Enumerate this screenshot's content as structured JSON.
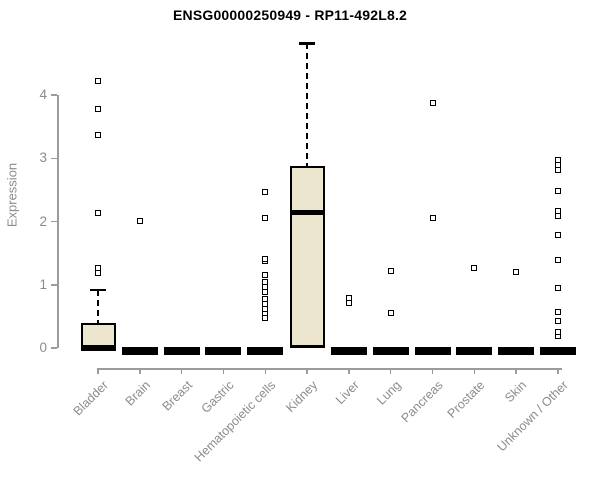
{
  "chart_data": {
    "type": "boxplot",
    "title": "ENSG00000250949 - RP11-492L8.2",
    "ylabel": "Expression",
    "xlabel": "",
    "yticks": [
      0,
      1,
      2,
      3,
      4
    ],
    "ylim": [
      -0.2,
      4.9
    ],
    "grid": false,
    "box_fill_color": "#EDE6CE",
    "box_border_color": "#000000",
    "axis_color": "#9b9b9b",
    "label_color": "#8c8c8c",
    "categories": [
      "Bladder",
      "Brain",
      "Breast",
      "Gastric",
      "Hematopoietic cells",
      "Kidney",
      "Liver",
      "Lung",
      "Pancreas",
      "Prostate",
      "Skin",
      "Unknown / Other"
    ],
    "series": [
      {
        "category": "Bladder",
        "q1": 0,
        "median": 0,
        "q3": 0.4,
        "whisker_low": 0,
        "whisker_high": 0.92,
        "outliers": [
          1.19,
          1.26,
          2.13,
          3.37,
          3.78,
          4.22
        ]
      },
      {
        "category": "Brain",
        "q1": 0,
        "median": 0,
        "q3": 0,
        "whisker_low": 0,
        "whisker_high": 0,
        "outliers": [
          2.01
        ]
      },
      {
        "category": "Breast",
        "q1": 0,
        "median": 0,
        "q3": 0,
        "whisker_low": 0,
        "whisker_high": 0,
        "outliers": []
      },
      {
        "category": "Gastric",
        "q1": 0,
        "median": 0,
        "q3": 0,
        "whisker_low": 0,
        "whisker_high": 0,
        "outliers": []
      },
      {
        "category": "Hematopoietic cells",
        "q1": 0,
        "median": 0,
        "q3": 0,
        "whisker_low": 0,
        "whisker_high": 0,
        "outliers": [
          0.47,
          0.55,
          0.62,
          0.7,
          0.78,
          0.89,
          0.96,
          1.04,
          1.15,
          1.37,
          1.4,
          2.05,
          2.47
        ]
      },
      {
        "category": "Kidney",
        "q1": 0,
        "median": 2.15,
        "q3": 2.88,
        "whisker_low": 0,
        "whisker_high": 4.82,
        "outliers": []
      },
      {
        "category": "Liver",
        "q1": 0,
        "median": 0,
        "q3": 0,
        "whisker_low": 0,
        "whisker_high": 0,
        "outliers": [
          0.71,
          0.79
        ]
      },
      {
        "category": "Lung",
        "q1": 0,
        "median": 0,
        "q3": 0,
        "whisker_low": 0,
        "whisker_high": 0,
        "outliers": [
          0.55,
          1.22
        ]
      },
      {
        "category": "Pancreas",
        "q1": 0,
        "median": 0,
        "q3": 0,
        "whisker_low": 0,
        "whisker_high": 0,
        "outliers": [
          2.06,
          3.87
        ]
      },
      {
        "category": "Prostate",
        "q1": 0,
        "median": 0,
        "q3": 0,
        "whisker_low": 0,
        "whisker_high": 0,
        "outliers": [
          1.27
        ]
      },
      {
        "category": "Skin",
        "q1": 0,
        "median": 0,
        "q3": 0,
        "whisker_low": 0,
        "whisker_high": 0,
        "outliers": [
          1.2
        ]
      },
      {
        "category": "Unknown / Other",
        "q1": 0,
        "median": 0,
        "q3": 0,
        "whisker_low": 0,
        "whisker_high": 0,
        "outliers": [
          0.19,
          0.25,
          0.43,
          0.57,
          0.95,
          1.39,
          1.79,
          2.09,
          2.17,
          2.48,
          2.81,
          2.89,
          2.97
        ]
      }
    ]
  }
}
